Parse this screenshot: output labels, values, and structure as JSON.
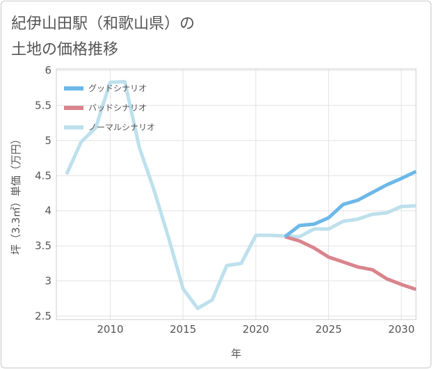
{
  "title_lines": [
    "紀伊山田駅（和歌山県）の",
    "土地の価格推移"
  ],
  "chart_data": {
    "type": "line",
    "xlabel": "年",
    "ylabel": "坪（3.3㎡）単価（万円）",
    "xlim": [
      2006.3,
      2031
    ],
    "ylim": [
      2.45,
      6.02
    ],
    "x_ticks": [
      2010,
      2015,
      2020,
      2025,
      2030
    ],
    "y_ticks": [
      2.5,
      3,
      3.5,
      4,
      4.5,
      5,
      5.5,
      6
    ],
    "x_tick_labels": [
      "2010",
      "2015",
      "2020",
      "2025",
      "2030"
    ],
    "y_tick_labels": [
      "2.5",
      "3",
      "3.5",
      "4",
      "4.5",
      "5",
      "5.5",
      "6"
    ],
    "grid": true,
    "legend_position": "top-left",
    "series": [
      {
        "name": "グッドシナリオ",
        "color": "#6cb8e8",
        "x": [
          2022,
          2023,
          2024,
          2025,
          2026,
          2027,
          2028,
          2029,
          2030,
          2031
        ],
        "values": [
          3.63,
          3.79,
          3.81,
          3.9,
          4.09,
          4.15,
          4.26,
          4.37,
          4.46,
          4.56
        ]
      },
      {
        "name": "バッドシナリオ",
        "color": "#d9848c",
        "x": [
          2022,
          2023,
          2024,
          2025,
          2026,
          2027,
          2028,
          2029,
          2030,
          2031
        ],
        "values": [
          3.63,
          3.57,
          3.47,
          3.34,
          3.27,
          3.2,
          3.16,
          3.03,
          2.95,
          2.88
        ]
      },
      {
        "name": "ノーマルシナリオ",
        "color": "#bde0ec",
        "x": [
          2007,
          2008,
          2009,
          2010,
          2011,
          2012,
          2013,
          2014,
          2015,
          2016,
          2017,
          2018,
          2019,
          2020,
          2021,
          2022,
          2023,
          2024,
          2025,
          2026,
          2027,
          2028,
          2029,
          2030,
          2031
        ],
        "values": [
          4.52,
          4.98,
          5.18,
          5.83,
          5.84,
          4.9,
          4.3,
          3.62,
          2.89,
          2.61,
          2.73,
          3.22,
          3.25,
          3.65,
          3.65,
          3.64,
          3.63,
          3.74,
          3.74,
          3.85,
          3.88,
          3.95,
          3.97,
          4.06,
          4.07
        ]
      }
    ]
  }
}
